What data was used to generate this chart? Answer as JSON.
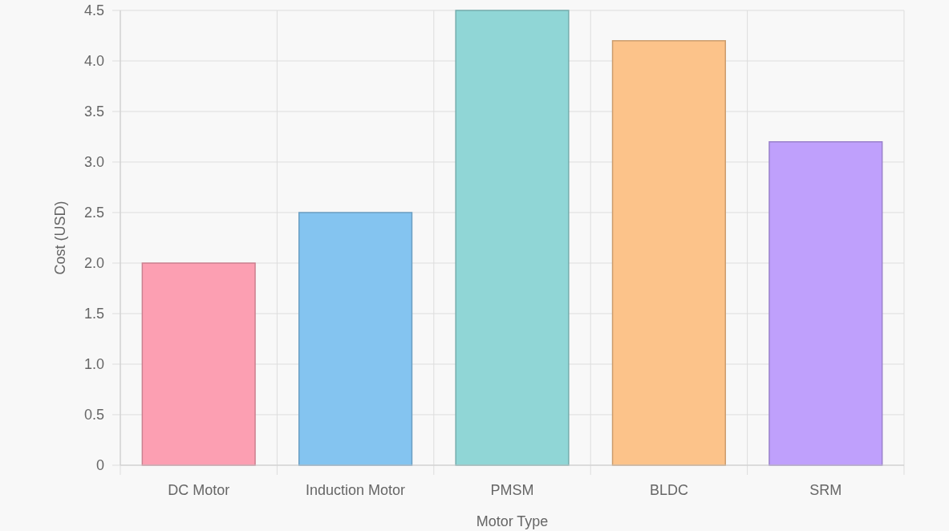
{
  "chart_data": {
    "type": "bar",
    "xlabel": "Motor Type",
    "ylabel": "Cost (USD)",
    "categories": [
      "DC Motor",
      "Induction Motor",
      "PMSM",
      "BLDC",
      "SRM"
    ],
    "values": [
      2.0,
      2.5,
      4.5,
      4.2,
      3.2
    ],
    "colors": [
      "#fc9fb2",
      "#84c4f0",
      "#90d6d6",
      "#fcc38a",
      "#bfa0fc"
    ],
    "ylim": [
      0,
      4.5
    ],
    "yticks": [
      {
        "value": 0,
        "label": "0"
      },
      {
        "value": 0.5,
        "label": "0.5"
      },
      {
        "value": 1,
        "label": "1.0"
      },
      {
        "value": 1.5,
        "label": "1.5"
      },
      {
        "value": 2,
        "label": "2.0"
      },
      {
        "value": 2.5,
        "label": "2.5"
      },
      {
        "value": 3,
        "label": "3.0"
      },
      {
        "value": 3.5,
        "label": "3.5"
      },
      {
        "value": 4,
        "label": "4.0"
      },
      {
        "value": 4.5,
        "label": "4.5"
      }
    ],
    "grid": true
  }
}
